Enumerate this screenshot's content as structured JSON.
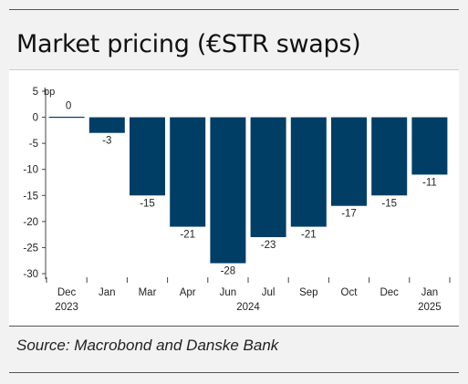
{
  "title": "Market pricing (€STR swaps)",
  "source": "Source: Macrobond and Danske Bank",
  "chart_data": {
    "type": "bar",
    "ylabel": "bp",
    "categories": [
      "Dec",
      "Jan",
      "Mar",
      "Apr",
      "Jun",
      "Jul",
      "Sep",
      "Oct",
      "Dec",
      "Jan"
    ],
    "year_labels": [
      "2023",
      "2024",
      "2025"
    ],
    "values": [
      0,
      -3,
      -15,
      -21,
      -28,
      -23,
      -21,
      -17,
      -15,
      -11
    ],
    "ylim": [
      -30,
      5
    ],
    "yticks": [
      5,
      0,
      -5,
      -10,
      -15,
      -20,
      -25,
      -30
    ],
    "bar_color": "#003e66",
    "grid": false
  }
}
